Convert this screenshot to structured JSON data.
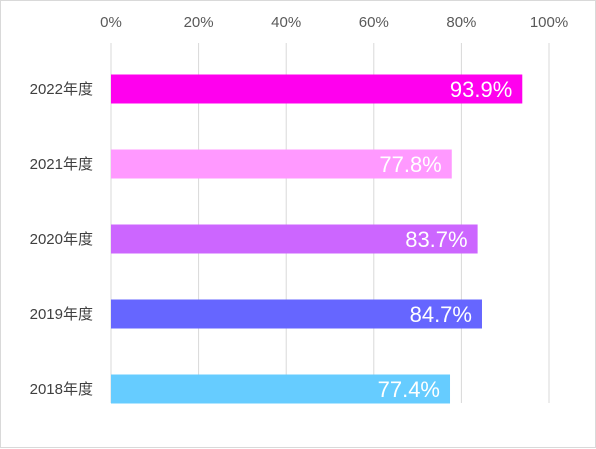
{
  "chart_data": {
    "type": "bar",
    "orientation": "horizontal",
    "categories": [
      "2022年度",
      "2021年度",
      "2020年度",
      "2019年度",
      "2018年度"
    ],
    "values": [
      93.9,
      77.8,
      83.7,
      84.7,
      77.4
    ],
    "data_labels": [
      "93.9%",
      "77.8%",
      "83.7%",
      "84.7%",
      "77.4%"
    ],
    "colors": [
      "#ff00ee",
      "#ff99ff",
      "#cc66ff",
      "#6666ff",
      "#66ccff"
    ],
    "xaxis": {
      "position": "top",
      "range": [
        0,
        100
      ],
      "ticks": [
        0,
        20,
        40,
        60,
        80,
        100
      ],
      "tick_labels": [
        "0%",
        "20%",
        "40%",
        "60%",
        "80%",
        "100%"
      ]
    },
    "grid": true,
    "grid_color": "#d9d9d9",
    "legend": "none",
    "title": "",
    "xlabel": "",
    "ylabel": ""
  }
}
